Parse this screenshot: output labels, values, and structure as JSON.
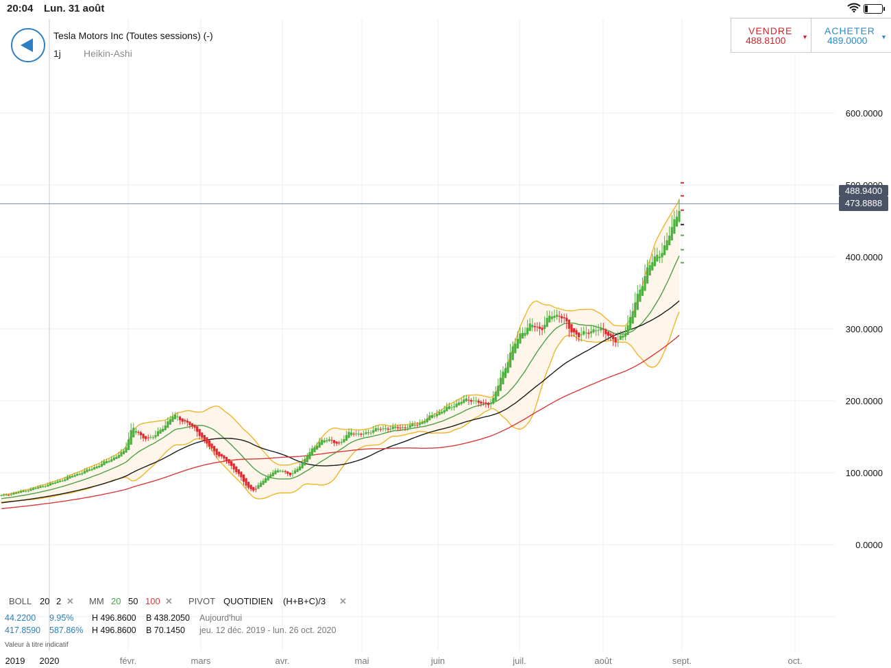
{
  "status_bar": {
    "time": "20:04",
    "date": "Lun. 31 août"
  },
  "header": {
    "instrument": "Tesla Motors Inc (Toutes sessions) (-)",
    "period": "1j",
    "chart_type": "Heikin-Ashi",
    "back_icon": "back-arrow-icon"
  },
  "trade": {
    "sell_label": "VENDRE",
    "sell_price": "488.8100",
    "sell_color": "#d0242a",
    "buy_label": "ACHETER",
    "buy_price": "489.0000",
    "buy_color": "#2a8bc8"
  },
  "price_tags": {
    "bid": "488.9400",
    "current": "473.8888"
  },
  "chart_data": {
    "type": "candlestick",
    "chart_style": "Heikin-Ashi",
    "y_ticks": [
      {
        "value": 0,
        "label": "0.0000"
      },
      {
        "value": 100,
        "label": "100.0000"
      },
      {
        "value": 200,
        "label": "200.0000"
      },
      {
        "value": 300,
        "label": "300.0000"
      },
      {
        "value": 400,
        "label": "400.0000"
      },
      {
        "value": 500,
        "label": "500.0000"
      },
      {
        "value": 600,
        "label": "600.0000"
      }
    ],
    "ylim": [
      -100,
      750
    ],
    "x_ticks": [
      {
        "label": "2019",
        "kind": "year"
      },
      {
        "label": "2020",
        "kind": "year"
      },
      {
        "label": "févr.",
        "kind": "month"
      },
      {
        "label": "mars",
        "kind": "month"
      },
      {
        "label": "avr.",
        "kind": "month"
      },
      {
        "label": "mai",
        "kind": "month"
      },
      {
        "label": "juin",
        "kind": "month"
      },
      {
        "label": "juil.",
        "kind": "month"
      },
      {
        "label": "août",
        "kind": "month"
      },
      {
        "label": "sept.",
        "kind": "month"
      },
      {
        "label": "oct.",
        "kind": "month"
      }
    ],
    "current_price_line": 473.8888,
    "anchors": [
      [
        0,
        68
      ],
      [
        8,
        74
      ],
      [
        15,
        80
      ],
      [
        22,
        87
      ],
      [
        28,
        95
      ],
      [
        36,
        105
      ],
      [
        44,
        118
      ],
      [
        50,
        130
      ],
      [
        53,
        165
      ],
      [
        57,
        148
      ],
      [
        62,
        150
      ],
      [
        66,
        165
      ],
      [
        70,
        180
      ],
      [
        75,
        170
      ],
      [
        79,
        160
      ],
      [
        84,
        138
      ],
      [
        88,
        125
      ],
      [
        92,
        115
      ],
      [
        96,
        100
      ],
      [
        100,
        80
      ],
      [
        103,
        75
      ],
      [
        106,
        88
      ],
      [
        110,
        100
      ],
      [
        114,
        104
      ],
      [
        118,
        96
      ],
      [
        122,
        112
      ],
      [
        126,
        130
      ],
      [
        130,
        145
      ],
      [
        134,
        145
      ],
      [
        138,
        140
      ],
      [
        142,
        158
      ],
      [
        146,
        152
      ],
      [
        152,
        160
      ],
      [
        158,
        162
      ],
      [
        164,
        163
      ],
      [
        170,
        168
      ],
      [
        176,
        180
      ],
      [
        182,
        190
      ],
      [
        188,
        200
      ],
      [
        192,
        202
      ],
      [
        196,
        195
      ],
      [
        200,
        198
      ],
      [
        204,
        235
      ],
      [
        208,
        270
      ],
      [
        212,
        295
      ],
      [
        216,
        305
      ],
      [
        220,
        300
      ],
      [
        224,
        318
      ],
      [
        228,
        320
      ],
      [
        232,
        298
      ],
      [
        236,
        290
      ],
      [
        242,
        300
      ],
      [
        247,
        295
      ],
      [
        251,
        280
      ],
      [
        255,
        300
      ],
      [
        259,
        340
      ],
      [
        263,
        380
      ],
      [
        267,
        400
      ],
      [
        271,
        415
      ],
      [
        274,
        445
      ],
      [
        277,
        475
      ]
    ],
    "moving_averages": [
      {
        "name": "MM 20",
        "period": 20,
        "color": "#4aa046"
      },
      {
        "name": "MM 50",
        "period": 50,
        "color": "#1a1a1a"
      },
      {
        "name": "MM 100",
        "period": 100,
        "color": "#d83a3a"
      }
    ],
    "bollinger": {
      "period": 20,
      "std": 2,
      "color": "#f0b429"
    },
    "up_color": "#4caf3f",
    "down_color": "#e0282e",
    "grid": true
  },
  "indicators": {
    "boll_label": "BOLL",
    "boll_p1": "20",
    "boll_p2": "2",
    "mm_label": "MM",
    "mm_p1": "20",
    "mm_p2": "50",
    "mm_p3": "100",
    "pivot_label": "PIVOT",
    "pivot_mode": "QUOTIDIEN",
    "pivot_formula": "(H+B+C)/3",
    "row1_a": "44.2200",
    "row1_b": "9.95%",
    "row1_h": "H 496.8600",
    "row1_l": "B 438.2050",
    "row1_c": "Aujourd'hui",
    "row2_a": "417.8590",
    "row2_b": "587.86%",
    "row2_h": "H 496.8600",
    "row2_l": "B 70.1450",
    "row2_c": "jeu. 12 déc. 2019 - lun. 26 oct. 2020",
    "note": "Valeur à titre indicatif",
    "close_icon": "close-x-icon"
  }
}
